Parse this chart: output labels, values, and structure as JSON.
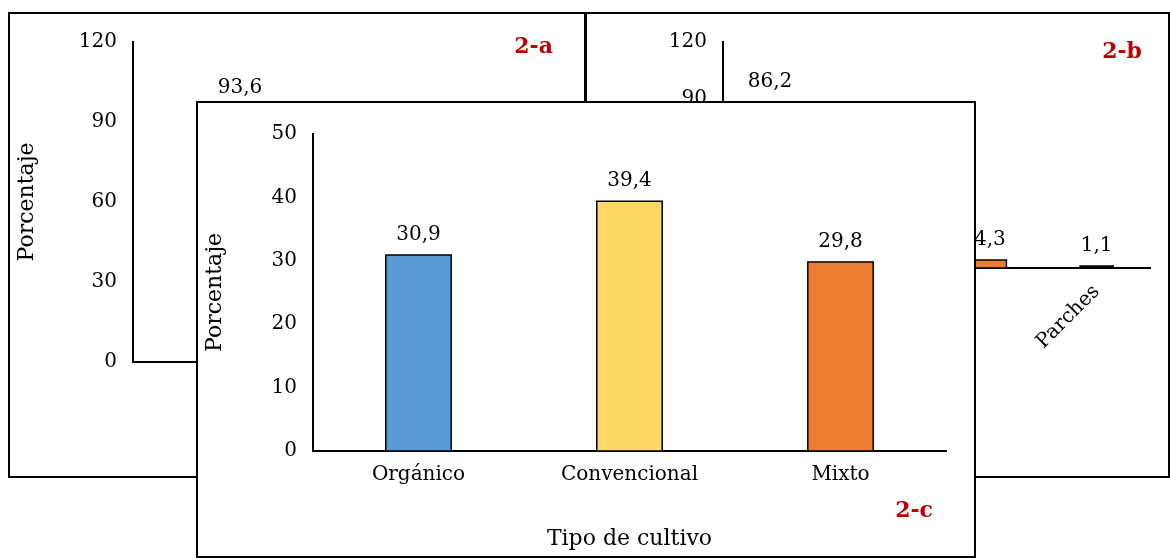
{
  "chart_data": [
    {
      "type": "bar",
      "categories": [
        null,
        null
      ],
      "values": [
        null,
        null
      ],
      "ylabel": "Porcentaje",
      "ylim": [
        0,
        120
      ],
      "yticks": [
        0,
        30,
        60,
        90,
        120
      ],
      "annotations": [
        "2-a",
        "93,6"
      ]
    },
    {
      "type": "bar",
      "categories": [
        null,
        null,
        null,
        "Parches"
      ],
      "values": [
        null,
        null,
        4.3,
        1.1
      ],
      "colors": [
        "#5b9bd5",
        "#5b9bd5",
        "#ed7d31",
        "#262626"
      ],
      "value_labels": [
        null,
        null,
        "4,3",
        "1,1"
      ],
      "ylim": [
        0,
        120
      ],
      "yticks": [
        90,
        120
      ],
      "annotations": [
        "2-b",
        "86,2"
      ]
    },
    {
      "type": "bar",
      "categories": [
        "Orgánico",
        "Convencional",
        "Mixto"
      ],
      "values": [
        30.9,
        39.4,
        29.8
      ],
      "colors": [
        "#5b9bd5",
        "#fdd866",
        "#ed7d31"
      ],
      "value_labels": [
        "30,9",
        "39,4",
        "29,8"
      ],
      "xlabel": "Tipo de cultivo",
      "ylabel": "Porcentaje",
      "ylim": [
        0,
        50
      ],
      "yticks": [
        0,
        10,
        20,
        30,
        40,
        50
      ],
      "annotations": [
        "2-c"
      ]
    }
  ]
}
